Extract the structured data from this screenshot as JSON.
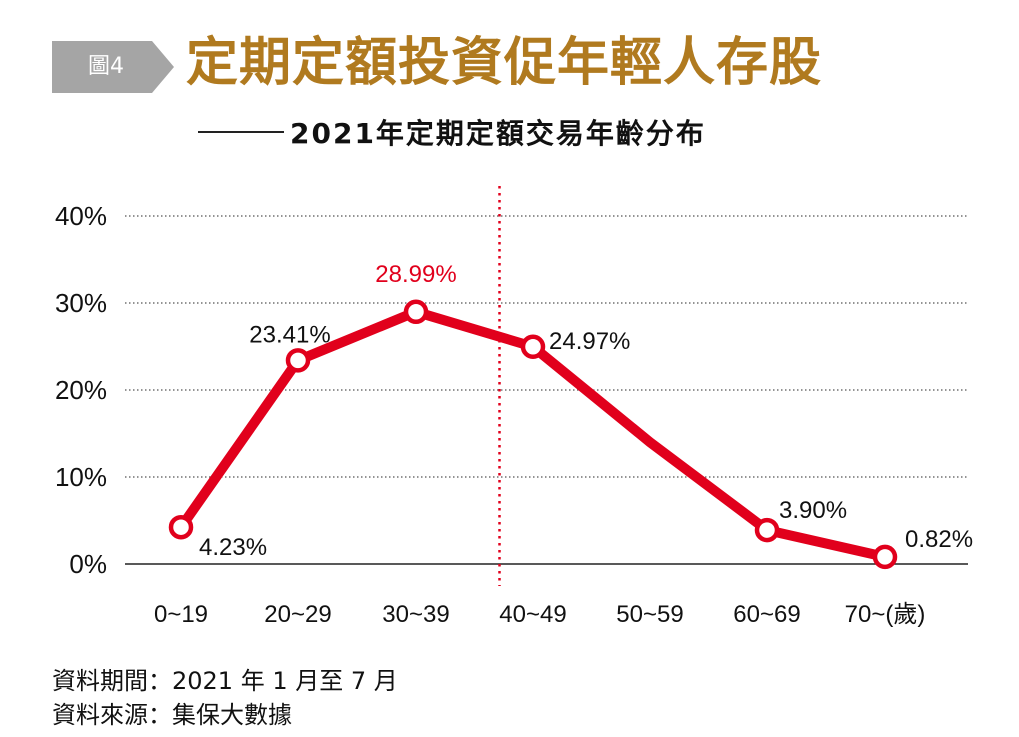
{
  "figure_label": "圖4",
  "title": "定期定額投資促年輕人存股",
  "subtitle": "2021年定期定額交易年齡分布",
  "colors": {
    "line": "#e1001c",
    "title": "#b07a1f",
    "badge": "#a5a5a5",
    "highlight_label": "#e1001c"
  },
  "chart_data": {
    "type": "line",
    "categories": [
      "0~19",
      "20~29",
      "30~39",
      "40~49",
      "50~59",
      "60~69",
      "70~(歲)"
    ],
    "x_labels": [
      "0~19",
      "20~29",
      "30~39",
      "40~49",
      "50~59",
      "60~69",
      "70~(歲)"
    ],
    "y_ticks": [
      "0%",
      "10%",
      "20%",
      "30%",
      "40%"
    ],
    "ylim": [
      0,
      40
    ],
    "grid": true,
    "divider_between": [
      "30~39",
      "40~49"
    ],
    "series": [
      {
        "values": [
          4.23,
          23.41,
          28.99,
          24.97,
          14.0,
          3.9,
          0.82
        ],
        "markers": [
          true,
          true,
          true,
          true,
          false,
          true,
          true
        ],
        "labels": [
          "4.23%",
          "23.41%",
          "28.99%",
          "24.97%",
          "",
          "3.90%",
          "0.82%"
        ],
        "highlight_index": 2
      }
    ]
  },
  "footer": {
    "period": "資料期間：2021 年 1 月至 7 月",
    "source": "資料來源：集保大數據"
  }
}
